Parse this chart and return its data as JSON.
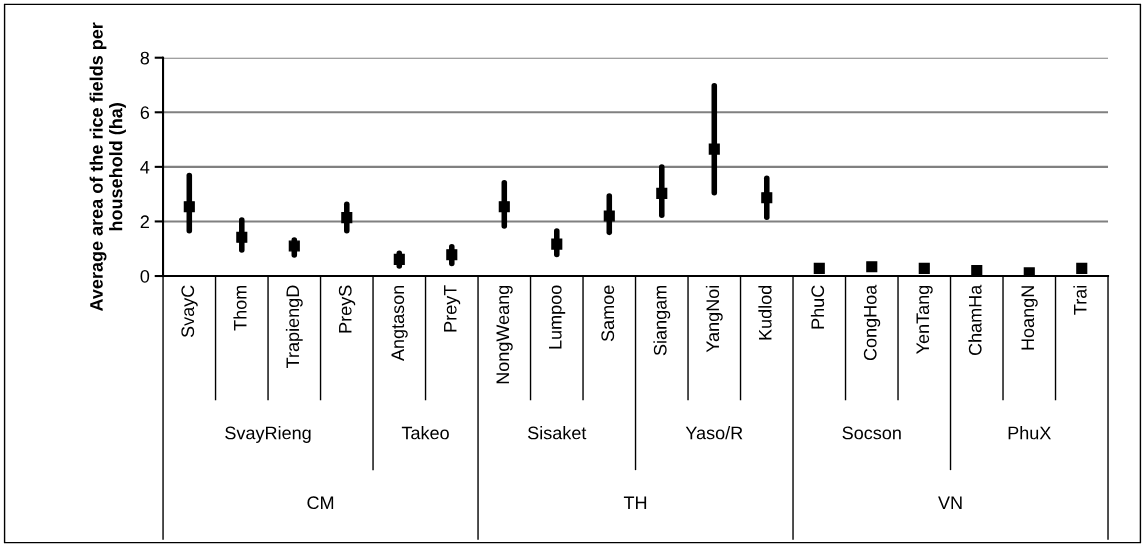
{
  "chart_data": {
    "type": "scatter",
    "ylabel": "Average area of the rice fields per\nhousehold (ha)",
    "categories": [
      "SvayC",
      "Thom",
      "TrapiengD",
      "PreyS",
      "Angtason",
      "PreyT",
      "NongWeang",
      "Lumpoo",
      "Samoe",
      "Siangam",
      "YangNoi",
      "Kudlod",
      "PhuC",
      "CongHoa",
      "YenTang",
      "ChamHa",
      "HoangN",
      "Trai"
    ],
    "series": [
      {
        "color": "#000000",
        "values": [
          2.54,
          1.42,
          1.1,
          2.14,
          0.61,
          0.78,
          2.54,
          1.17,
          2.2,
          3.03,
          4.65,
          2.87,
          0.28,
          0.34,
          0.28,
          0.2,
          0.12,
          0.28
        ],
        "errors": [
          [
            1.66,
            3.68
          ],
          [
            0.95,
            2.05
          ],
          [
            0.77,
            1.32
          ],
          [
            1.66,
            2.63
          ],
          [
            0.37,
            0.83
          ],
          [
            0.46,
            1.07
          ],
          [
            1.83,
            3.42
          ],
          [
            0.79,
            1.65
          ],
          [
            1.6,
            2.93
          ],
          [
            2.23,
            3.99
          ],
          [
            3.05,
            6.97
          ],
          [
            2.15,
            3.58
          ],
          null,
          null,
          null,
          null,
          null,
          null
        ]
      }
    ],
    "annotations": [
      "SvayRieng",
      "Takeo",
      "Sisaket",
      "Yaso/R",
      "Socson",
      "PhuX",
      "CM",
      "TH",
      "VN"
    ],
    "ylim": [
      0,
      8
    ],
    "yticks": [
      0,
      2,
      4,
      6,
      8
    ],
    "grid": "y",
    "marker": "square",
    "legend": false
  }
}
